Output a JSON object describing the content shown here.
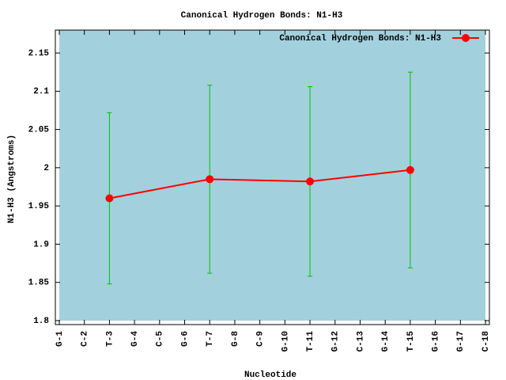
{
  "chart_data": {
    "type": "errorline",
    "title": "Canonical Hydrogen Bonds: N1-H3",
    "x_label": "Nucleotide",
    "y_label": "N1-H3 (Angstroms)",
    "xlim": [
      1,
      18
    ],
    "xticks": [
      {
        "value": 1,
        "label": "G-1"
      },
      {
        "value": 2,
        "label": "C-2"
      },
      {
        "value": 3,
        "label": "T-3"
      },
      {
        "value": 4,
        "label": "G-4"
      },
      {
        "value": 5,
        "label": "C-5"
      },
      {
        "value": 6,
        "label": "G-6"
      },
      {
        "value": 7,
        "label": "T-7"
      },
      {
        "value": 8,
        "label": "G-8"
      },
      {
        "value": 9,
        "label": "C-9"
      },
      {
        "value": 10,
        "label": "G-10"
      },
      {
        "value": 11,
        "label": "T-11"
      },
      {
        "value": 12,
        "label": "G-12"
      },
      {
        "value": 13,
        "label": "C-13"
      },
      {
        "value": 14,
        "label": "G-14"
      },
      {
        "value": 15,
        "label": "T-15"
      },
      {
        "value": 16,
        "label": "G-16"
      },
      {
        "value": 17,
        "label": "G-17"
      },
      {
        "value": 18,
        "label": "C-18"
      }
    ],
    "ylim": [
      1.8,
      2.18
    ],
    "yticks": [
      1.8,
      1.85,
      1.9,
      1.95,
      2,
      2.05,
      2.1,
      2.15
    ],
    "background": "#a3d0dd",
    "legend": "top-right",
    "series": [
      {
        "name": "Canonical Hydrogen Bonds: N1-H3",
        "color": "#ff0000",
        "error_color": "#00c000",
        "x": [
          3,
          7,
          11,
          15
        ],
        "values": [
          1.96,
          1.985,
          1.982,
          1.997
        ],
        "errors": [
          0.112,
          0.123,
          0.124,
          0.128
        ]
      }
    ]
  }
}
